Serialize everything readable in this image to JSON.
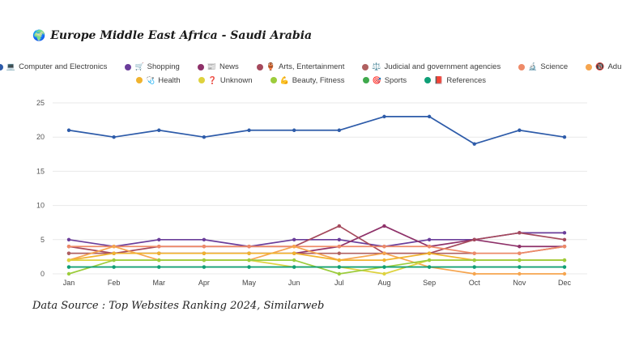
{
  "title": {
    "icon": "🌍",
    "text": "Europe Middle East Africa - Saudi Arabia"
  },
  "footer": "Data Source : Top Websites Ranking 2024, Similarweb",
  "chart_data": {
    "type": "line",
    "title": "Europe Middle East Africa - Saudi Arabia",
    "xlabel": "",
    "ylabel": "",
    "ylim": [
      0,
      25
    ],
    "y_ticks": [
      0,
      5,
      10,
      15,
      20,
      25
    ],
    "grid": true,
    "legend_position": "top",
    "categories": [
      "Jan",
      "Feb",
      "Mar",
      "Apr",
      "May",
      "Jun",
      "Jul",
      "Aug",
      "Sep",
      "Oct",
      "Nov",
      "Dec"
    ],
    "legend_rows": [
      7,
      5
    ],
    "series": [
      {
        "name": "Computer and Electronics",
        "icon": "💻",
        "color": "#2d5ba9",
        "values": [
          21,
          20,
          21,
          20,
          21,
          21,
          21,
          23,
          23,
          19,
          21,
          20
        ]
      },
      {
        "name": "Shopping",
        "icon": "🛒",
        "color": "#6a3d9a",
        "values": [
          5,
          4,
          5,
          5,
          4,
          5,
          5,
          4,
          5,
          5,
          6,
          6
        ]
      },
      {
        "name": "News",
        "icon": "📰",
        "color": "#8e3169",
        "values": [
          3,
          3,
          3,
          3,
          3,
          3,
          4,
          7,
          4,
          5,
          4,
          4
        ]
      },
      {
        "name": "Arts, Entertainment",
        "icon": "🏺",
        "color": "#a5495c",
        "values": [
          4,
          3,
          4,
          4,
          4,
          4,
          7,
          3,
          3,
          5,
          6,
          5
        ]
      },
      {
        "name": "Judicial and government agencies",
        "icon": "⚖️",
        "color": "#b06060",
        "values": [
          3,
          3,
          3,
          3,
          3,
          3,
          3,
          3,
          3,
          3,
          3,
          4
        ]
      },
      {
        "name": "Science",
        "icon": "🔬",
        "color": "#ee8a68",
        "values": [
          4,
          4,
          4,
          4,
          4,
          4,
          4,
          4,
          4,
          3,
          3,
          4
        ]
      },
      {
        "name": "Adult",
        "icon": "🔞",
        "color": "#f6a54f",
        "values": [
          2,
          4,
          2,
          2,
          2,
          4,
          2,
          3,
          1,
          0,
          0,
          0
        ]
      },
      {
        "name": "Health",
        "icon": "🩺",
        "color": "#f0b32e",
        "values": [
          2,
          3,
          3,
          3,
          3,
          3,
          2,
          2,
          3,
          2,
          2,
          2
        ]
      },
      {
        "name": "Unknown",
        "icon": "❓",
        "color": "#ded23e",
        "values": [
          2,
          2,
          2,
          2,
          2,
          1,
          1,
          0,
          2,
          2,
          2,
          2
        ]
      },
      {
        "name": "Beauty, Fitness",
        "icon": "💪",
        "color": "#9ccc3c",
        "values": [
          0,
          2,
          2,
          2,
          2,
          2,
          0,
          1,
          2,
          2,
          2,
          2
        ]
      },
      {
        "name": "Sports",
        "icon": "🎯",
        "color": "#3fa94c",
        "values": [
          1,
          1,
          1,
          1,
          1,
          1,
          1,
          1,
          1,
          1,
          1,
          1
        ]
      },
      {
        "name": "References",
        "icon": "📕",
        "color": "#0f9f77",
        "values": [
          1,
          1,
          1,
          1,
          1,
          1,
          1,
          1,
          1,
          1,
          1,
          1
        ]
      }
    ]
  }
}
